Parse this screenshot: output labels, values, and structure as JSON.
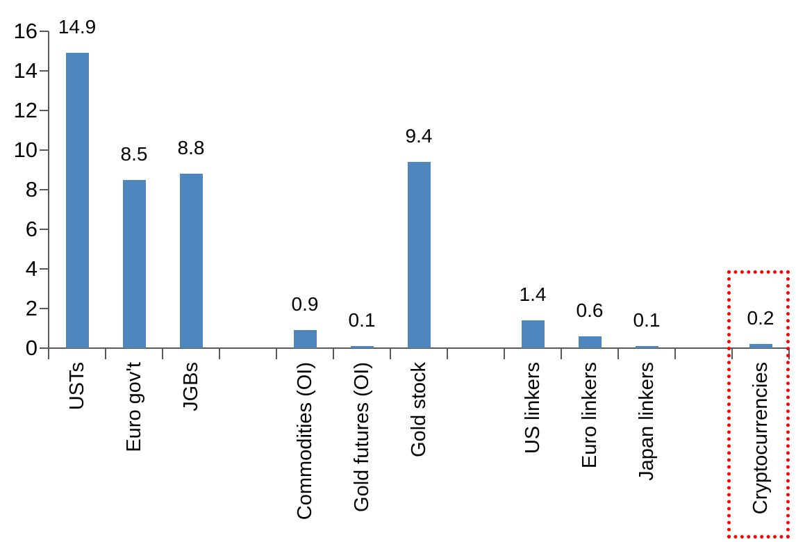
{
  "chart_data": {
    "type": "bar",
    "title": "",
    "xlabel": "",
    "ylabel": "",
    "categories": [
      "USTs",
      "Euro gov't",
      "JGBs",
      "",
      "Commodities (OI)",
      "Gold futures (OI)",
      "Gold stock",
      "",
      "US linkers",
      "Euro linkers",
      "Japan linkers",
      "",
      "Cryptocurrencies"
    ],
    "values": [
      14.9,
      8.5,
      8.8,
      null,
      0.9,
      0.1,
      9.4,
      null,
      1.4,
      0.6,
      0.1,
      null,
      0.2
    ],
    "value_labels": [
      "14.9",
      "8.5",
      "8.8",
      "",
      "0.9",
      "0.1",
      "9.4",
      "",
      "1.4",
      "0.6",
      "0.1",
      "",
      "0.2"
    ],
    "ylim": [
      0,
      16
    ],
    "yticks": [
      0,
      2,
      4,
      6,
      8,
      10,
      12,
      14,
      16
    ],
    "grid": false,
    "legend": null,
    "colors": {
      "bar": "#4F86BD",
      "axis": "#595959",
      "text": "#000000",
      "highlight_box": "#FF0000"
    },
    "highlight": {
      "category": "Cryptocurrencies",
      "value_label": "0.2",
      "style": "red dotted rectangle around bar and axis label"
    }
  }
}
